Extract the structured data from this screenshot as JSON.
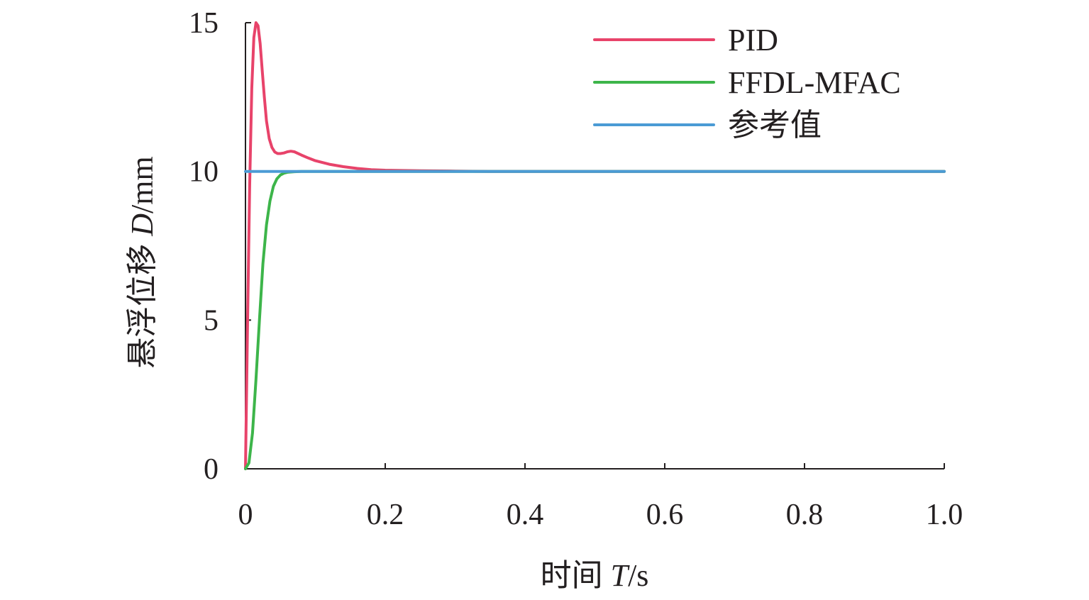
{
  "chart_data": {
    "type": "line",
    "xlabel": {
      "prefix": "时间 ",
      "var": "T",
      "unit": "/s"
    },
    "ylabel": {
      "prefix": "悬浮位移 ",
      "var": "D",
      "unit": "/mm"
    },
    "xlim": [
      0,
      1.0
    ],
    "ylim": [
      0,
      15
    ],
    "xticks": [
      0,
      0.2,
      0.4,
      0.6,
      0.8,
      1.0
    ],
    "xtick_labels": [
      "0",
      "0.2",
      "0.4",
      "0.6",
      "0.8",
      "1.0"
    ],
    "yticks": [
      0,
      5,
      10,
      15
    ],
    "ytick_labels": [
      "0",
      "5",
      "10",
      "15"
    ],
    "grid": false,
    "legend_position": "top-right",
    "series": [
      {
        "name": "PID",
        "color": "#e8436a",
        "x": [
          0,
          0.003,
          0.006,
          0.009,
          0.012,
          0.015,
          0.018,
          0.021,
          0.024,
          0.027,
          0.03,
          0.034,
          0.038,
          0.042,
          0.046,
          0.05,
          0.055,
          0.06,
          0.065,
          0.07,
          0.08,
          0.09,
          0.1,
          0.12,
          0.14,
          0.16,
          0.18,
          0.2,
          0.25,
          0.3,
          0.35,
          0.4,
          0.5,
          0.6,
          0.7,
          0.8,
          0.9,
          1.0
        ],
        "y": [
          0,
          5.0,
          9.5,
          12.8,
          14.5,
          15.0,
          14.9,
          14.3,
          13.4,
          12.5,
          11.7,
          11.1,
          10.8,
          10.65,
          10.6,
          10.6,
          10.62,
          10.66,
          10.68,
          10.66,
          10.55,
          10.45,
          10.36,
          10.24,
          10.16,
          10.1,
          10.06,
          10.04,
          10.02,
          10.01,
          10.0,
          10.0,
          10.0,
          10.0,
          10.0,
          10.0,
          10.0,
          10.0
        ]
      },
      {
        "name": "FFDL-MFAC",
        "color": "#3db54a",
        "x": [
          0,
          0.005,
          0.01,
          0.015,
          0.02,
          0.025,
          0.03,
          0.035,
          0.04,
          0.045,
          0.05,
          0.055,
          0.06,
          0.07,
          0.08,
          0.1,
          0.15,
          0.2,
          0.4,
          0.6,
          0.8,
          1.0
        ],
        "y": [
          0,
          0.2,
          1.2,
          3.0,
          5.0,
          6.9,
          8.2,
          9.0,
          9.5,
          9.75,
          9.88,
          9.94,
          9.97,
          9.99,
          10.0,
          10.0,
          10.0,
          10.0,
          10.0,
          10.0,
          10.0,
          10.0
        ]
      },
      {
        "name": "参考值",
        "color": "#4b9bd5",
        "x": [
          0,
          1.0
        ],
        "y": [
          10,
          10
        ]
      }
    ]
  }
}
